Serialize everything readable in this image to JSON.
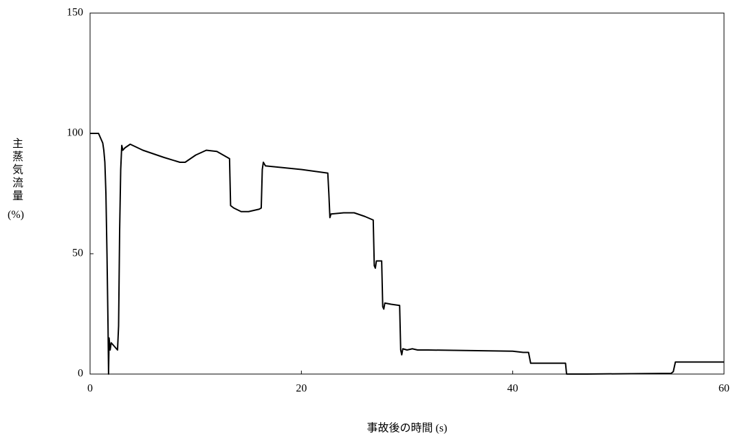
{
  "chart_data": {
    "type": "line",
    "x_label": "事故後の時間 (s)",
    "y_label": [
      "主蒸気流量",
      "(%)"
    ],
    "xlim": [
      0,
      60
    ],
    "xticks": [
      0,
      20,
      40,
      60
    ],
    "ylim": [
      0,
      150
    ],
    "yticks": [
      0,
      50,
      100,
      150
    ],
    "grid": false,
    "series": [
      {
        "color": "#000000",
        "x": [
          0,
          0.8,
          1,
          1.2,
          1.3,
          1.4,
          1.5,
          1.6,
          1.7,
          1.75,
          1.8,
          1.9,
          2.0,
          2.2,
          2.4,
          2.6,
          2.7,
          2.8,
          2.9,
          3.0,
          3.1,
          3.3,
          3.8,
          5,
          7,
          8.5,
          9,
          10,
          11,
          12,
          13,
          13.2,
          13.3,
          13.6,
          14.3,
          15,
          16,
          16.2,
          16.3,
          16.4,
          16.6,
          20,
          22.5,
          22.6,
          22.7,
          22.8,
          24,
          25,
          26,
          26.8,
          26.9,
          27,
          27.1,
          27.6,
          27.7,
          27.8,
          27.9,
          28.5,
          29.3,
          29.4,
          29.5,
          29.6,
          30,
          30.5,
          31,
          32,
          40,
          41,
          41.5,
          41.7,
          45,
          45.1,
          47,
          55,
          55.2,
          55.4,
          56,
          60
        ],
        "values": [
          100,
          100,
          98,
          96,
          93,
          88,
          75,
          50,
          20,
          0,
          15,
          10,
          13,
          12,
          11,
          10,
          20,
          60,
          85,
          95,
          93,
          94,
          95.5,
          93,
          90,
          88,
          88,
          91,
          93,
          92.5,
          90,
          89.5,
          70,
          69,
          67.5,
          67.5,
          68.5,
          69,
          85,
          88,
          86.5,
          85,
          83.5,
          75,
          65,
          66.5,
          67,
          67,
          65.5,
          64,
          45,
          44,
          47,
          47,
          28,
          27,
          29.5,
          29,
          28.5,
          10,
          8,
          10.5,
          10,
          10.5,
          10,
          10,
          9.5,
          9,
          9,
          4.5,
          4.5,
          0,
          0,
          0.3,
          1,
          5,
          5,
          5
        ]
      }
    ]
  }
}
